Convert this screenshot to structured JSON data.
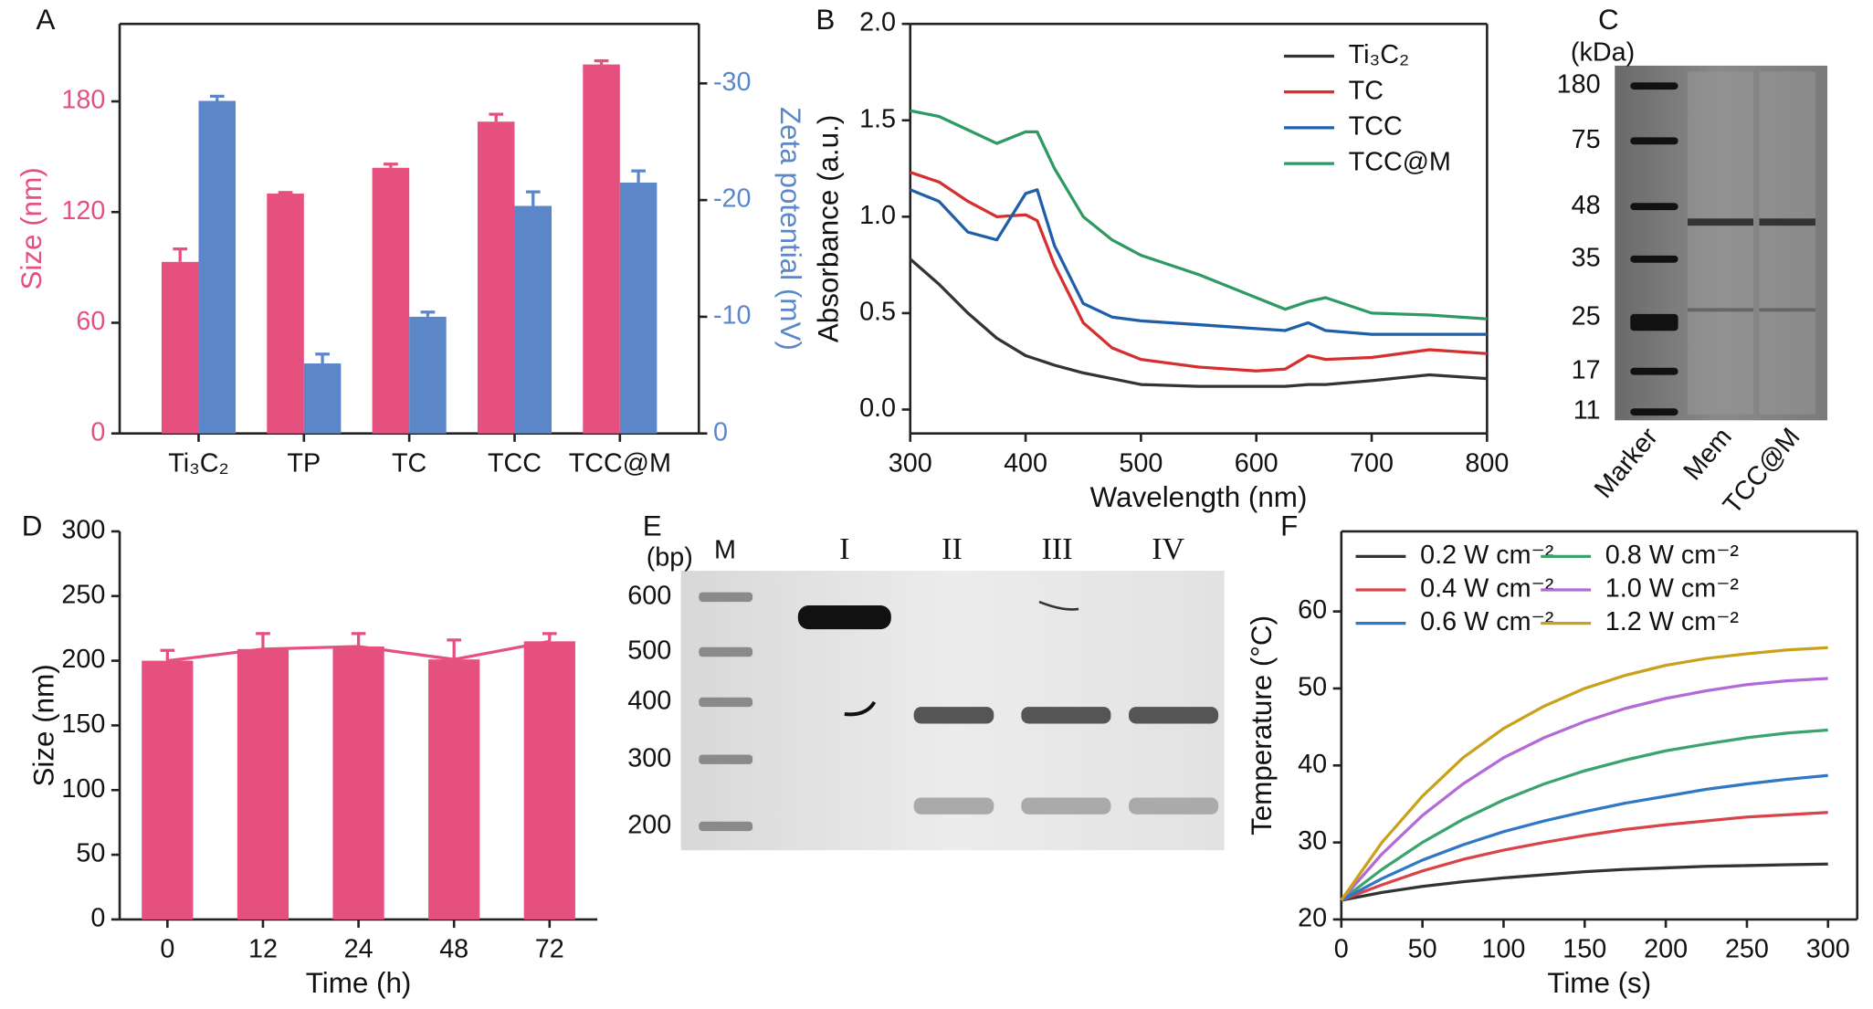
{
  "chart_data": [
    {
      "type": "bar",
      "panel": "A",
      "ylabel": "Size (nm)",
      "y2label": "Zeta potential (mV)",
      "categories": [
        "Ti₃C₂",
        "TP",
        "TC",
        "TCC",
        "TCC@M"
      ],
      "series": [
        {
          "name": "Size",
          "color": "#e6507e",
          "values": [
            93,
            130,
            144,
            169,
            200
          ],
          "errors": [
            7,
            0.6,
            2,
            4,
            2
          ]
        },
        {
          "name": "Zeta potential",
          "color": "#5b87c8",
          "axis": "y2",
          "values": [
            -28.5,
            -6,
            -10,
            -19.5,
            -21.5
          ],
          "errors": [
            0.4,
            0.8,
            0.4,
            1.2,
            1.0
          ]
        }
      ],
      "ylim": [
        0,
        222
      ],
      "yticks": [
        0,
        60,
        120,
        180
      ],
      "y2lim": [
        0,
        -35.1
      ],
      "y2ticks": [
        0,
        -10,
        -20,
        -30
      ]
    },
    {
      "type": "line",
      "panel": "B",
      "xlabel": "Wavelength (nm)",
      "ylabel": "Absorbance (a.u.)",
      "x": [
        300,
        325,
        350,
        375,
        400,
        410,
        425,
        450,
        475,
        500,
        550,
        600,
        625,
        645,
        660,
        700,
        750,
        800
      ],
      "series": [
        {
          "name": "Ti₃C₂",
          "color": "#333333",
          "values": [
            0.78,
            0.65,
            0.5,
            0.37,
            0.28,
            0.26,
            0.23,
            0.19,
            0.16,
            0.13,
            0.12,
            0.12,
            0.12,
            0.13,
            0.13,
            0.15,
            0.18,
            0.16
          ]
        },
        {
          "name": "TC",
          "color": "#d62f2f",
          "values": [
            1.23,
            1.18,
            1.08,
            1.0,
            1.01,
            0.98,
            0.75,
            0.45,
            0.32,
            0.26,
            0.22,
            0.2,
            0.21,
            0.28,
            0.26,
            0.27,
            0.31,
            0.29
          ]
        },
        {
          "name": "TCC",
          "color": "#1f5ea8",
          "values": [
            1.14,
            1.08,
            0.92,
            0.88,
            1.12,
            1.14,
            0.85,
            0.55,
            0.48,
            0.46,
            0.44,
            0.42,
            0.41,
            0.45,
            0.41,
            0.39,
            0.39,
            0.39
          ]
        },
        {
          "name": "TCC@M",
          "color": "#2e9a63",
          "values": [
            1.55,
            1.52,
            1.45,
            1.38,
            1.44,
            1.44,
            1.25,
            1.0,
            0.88,
            0.8,
            0.7,
            0.58,
            0.52,
            0.56,
            0.58,
            0.5,
            0.49,
            0.47
          ]
        }
      ],
      "xlim": [
        300,
        800
      ],
      "xticks": [
        300,
        400,
        500,
        600,
        700,
        800
      ],
      "ylim": [
        -0.124,
        2.0
      ],
      "yticks": [
        {
          "value": 0,
          "label": "0.0"
        },
        {
          "value": 0.5,
          "label": "0.5"
        },
        {
          "value": 1,
          "label": "1.0"
        },
        {
          "value": 1.5,
          "label": "1.5"
        },
        {
          "value": 2,
          "label": "2.0"
        }
      ],
      "legend": "upper right"
    },
    {
      "type": "gel",
      "panel": "C",
      "unit_label": "(kDa)",
      "ladder": [
        180,
        75,
        48,
        35,
        25,
        17,
        11
      ],
      "lanes": [
        "Marker",
        "Mem",
        "TCC@M"
      ]
    },
    {
      "type": "bar",
      "panel": "D",
      "xlabel": "Time (h)",
      "ylabel": "Size (nm)",
      "categories": [
        "0",
        "12",
        "24",
        "48",
        "72"
      ],
      "series": [
        {
          "name": "Size",
          "color": "#e6507e",
          "values": [
            200,
            209,
            211,
            201,
            215
          ],
          "errors": [
            8,
            12,
            10,
            15,
            6
          ]
        }
      ],
      "ylim": [
        0,
        300
      ],
      "yticks": [
        0,
        50,
        100,
        150,
        200,
        250,
        300
      ],
      "connect": true
    },
    {
      "type": "gel",
      "panel": "E",
      "unit_label": "(bp)",
      "ladder": [
        600,
        500,
        400,
        300,
        200
      ],
      "lanes": [
        "M",
        "I",
        "II",
        "III",
        "IV"
      ]
    },
    {
      "type": "line",
      "panel": "F",
      "xlabel": "Time (s)",
      "ylabel": "Temperature (°C)",
      "x": [
        0,
        25,
        50,
        75,
        100,
        125,
        150,
        175,
        200,
        225,
        250,
        275,
        300
      ],
      "series": [
        {
          "name": "0.2 W cm⁻²",
          "color": "#333333",
          "values": [
            22.5,
            23.5,
            24.3,
            24.9,
            25.4,
            25.8,
            26.2,
            26.5,
            26.7,
            26.9,
            27,
            27.1,
            27.2
          ]
        },
        {
          "name": "0.8 W cm⁻²",
          "color": "#3aa36e",
          "values": [
            22.5,
            26.5,
            30,
            33,
            35.5,
            37.6,
            39.3,
            40.7,
            41.9,
            42.8,
            43.6,
            44.2,
            44.6
          ]
        },
        {
          "name": "0.4 W cm⁻²",
          "color": "#d9434a",
          "values": [
            22.5,
            24.5,
            26.3,
            27.8,
            29,
            30,
            30.9,
            31.7,
            32.3,
            32.8,
            33.3,
            33.6,
            33.9
          ]
        },
        {
          "name": "1.0 W cm⁻²",
          "color": "#b36ad6",
          "values": [
            22.5,
            28.5,
            33.5,
            37.6,
            41,
            43.6,
            45.7,
            47.4,
            48.7,
            49.7,
            50.5,
            51,
            51.3
          ]
        },
        {
          "name": "0.6 W cm⁻²",
          "color": "#2f78c4",
          "values": [
            22.5,
            25.3,
            27.7,
            29.7,
            31.4,
            32.8,
            34,
            35.1,
            36,
            36.9,
            37.6,
            38.2,
            38.7
          ]
        },
        {
          "name": "1.2 W cm⁻²",
          "color": "#c9a11a",
          "values": [
            22.5,
            30,
            36,
            41,
            44.8,
            47.7,
            50,
            51.7,
            53,
            53.9,
            54.5,
            55,
            55.3
          ]
        }
      ],
      "xlim": [
        0,
        318
      ],
      "xticks": [
        0,
        50,
        100,
        150,
        200,
        250,
        300
      ],
      "ylim": [
        20,
        70.4
      ],
      "yticks": [
        20,
        30,
        40,
        50,
        60
      ],
      "legend": "upper left",
      "legend_columns": 2
    }
  ]
}
